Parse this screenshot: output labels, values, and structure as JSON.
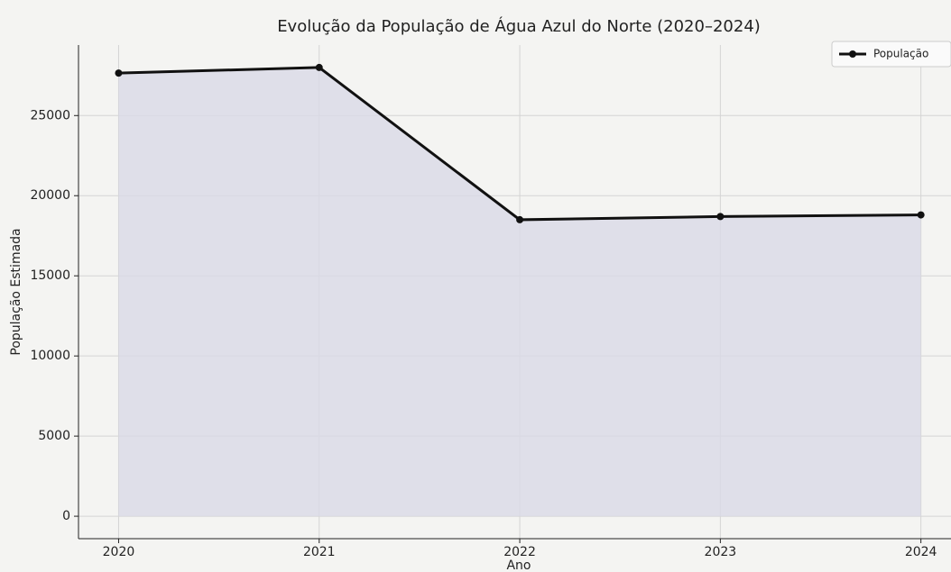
{
  "chart_data": {
    "type": "line",
    "title": "Evolução da População de Água Azul do Norte (2020–2024)",
    "x_label": "Ano",
    "y_label": "População Estimada",
    "x": [
      2020,
      2021,
      2022,
      2023,
      2024
    ],
    "series": [
      {
        "name": "População",
        "color": "#111111",
        "fill_color": "#d9d9e6",
        "values": [
          27650,
          28000,
          18500,
          18700,
          18800
        ]
      }
    ],
    "xlim": [
      2019.8,
      2024.15
    ],
    "xticks": [
      2020,
      2021,
      2022,
      2023,
      2024
    ],
    "ylim": [
      -1400,
      29400
    ],
    "yticks": [
      0,
      5000,
      10000,
      15000,
      20000,
      25000
    ],
    "grid": true,
    "legend": "upper right",
    "fill": true
  }
}
